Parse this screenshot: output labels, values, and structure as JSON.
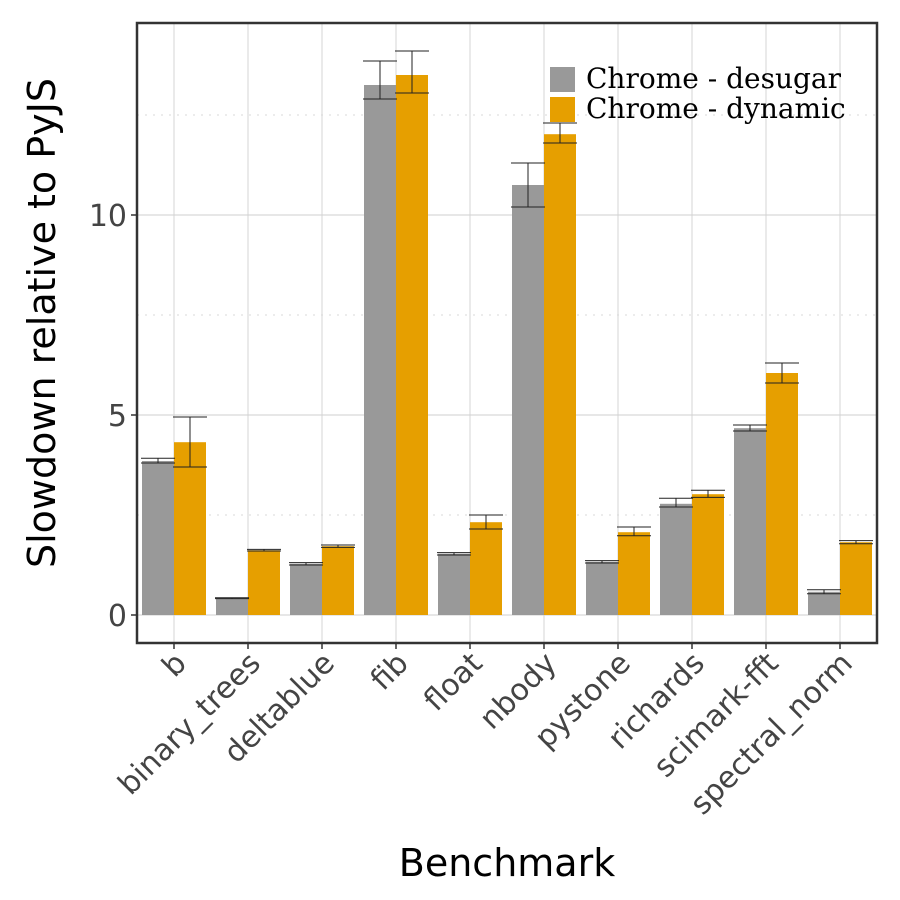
{
  "chart_data": {
    "type": "bar",
    "xlabel": "Benchmark",
    "ylabel": "Slowdown relative to PyJS",
    "ylim": [
      -0.7,
      14.8
    ],
    "yticks": [
      0,
      5,
      10
    ],
    "grid": true,
    "legend_position": "top-right",
    "categories": [
      "b",
      "binary_trees",
      "deltablue",
      "fib",
      "float",
      "nbody",
      "pystone",
      "richards",
      "scimark-fft",
      "spectral_norm"
    ],
    "series": [
      {
        "name": "Chrome - desugar",
        "color": "#999999",
        "values": [
          3.85,
          0.42,
          1.28,
          13.25,
          1.53,
          10.75,
          1.33,
          2.78,
          4.67,
          0.58
        ],
        "err_low": [
          3.8,
          0.41,
          1.25,
          12.9,
          1.5,
          10.2,
          1.3,
          2.7,
          4.6,
          0.53
        ],
        "err_high": [
          3.92,
          0.43,
          1.31,
          13.85,
          1.56,
          11.3,
          1.36,
          2.92,
          4.75,
          0.63
        ]
      },
      {
        "name": "Chrome - dynamic",
        "color": "#E69F00",
        "values": [
          4.32,
          1.62,
          1.72,
          13.5,
          2.32,
          12.02,
          2.07,
          3.02,
          6.05,
          1.82
        ],
        "err_low": [
          3.7,
          1.6,
          1.69,
          13.05,
          2.15,
          11.8,
          1.98,
          2.94,
          5.8,
          1.78
        ],
        "err_high": [
          4.95,
          1.64,
          1.75,
          14.1,
          2.5,
          12.3,
          2.2,
          3.12,
          6.3,
          1.86
        ]
      }
    ]
  }
}
